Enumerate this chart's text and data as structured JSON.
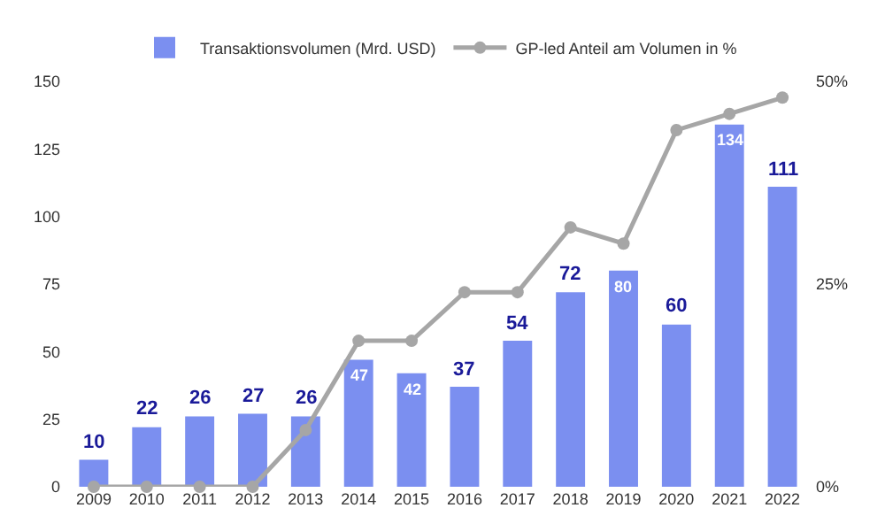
{
  "chart_data": {
    "type": "bar",
    "categories": [
      "2009",
      "2010",
      "2011",
      "2012",
      "2013",
      "2014",
      "2015",
      "2016",
      "2017",
      "2018",
      "2019",
      "2020",
      "2021",
      "2022"
    ],
    "series": [
      {
        "name": "Transaktionsvolumen (Mrd. USD)",
        "color": "#7b8ff0",
        "values": [
          10,
          22,
          26,
          27,
          26,
          47,
          42,
          37,
          54,
          72,
          80,
          60,
          134,
          111
        ],
        "data_labels": true
      },
      {
        "name": "GP-led Anteil am Volumen in %",
        "type": "line",
        "axis": "y2",
        "color": "#a6a6a6",
        "marker": "circle",
        "values": [
          0,
          0,
          0,
          0,
          7,
          18,
          18,
          24,
          24,
          32,
          30,
          44,
          46,
          48
        ]
      }
    ],
    "ylim": [
      0,
      150
    ],
    "yticks": [
      0,
      25,
      50,
      75,
      100,
      125,
      150
    ],
    "y2lim": [
      0,
      50
    ],
    "y2ticks": [
      {
        "value": 0,
        "label": "0%"
      },
      {
        "value": 25,
        "label": "25%"
      },
      {
        "value": 50,
        "label": "50%"
      }
    ],
    "legend": "top"
  }
}
